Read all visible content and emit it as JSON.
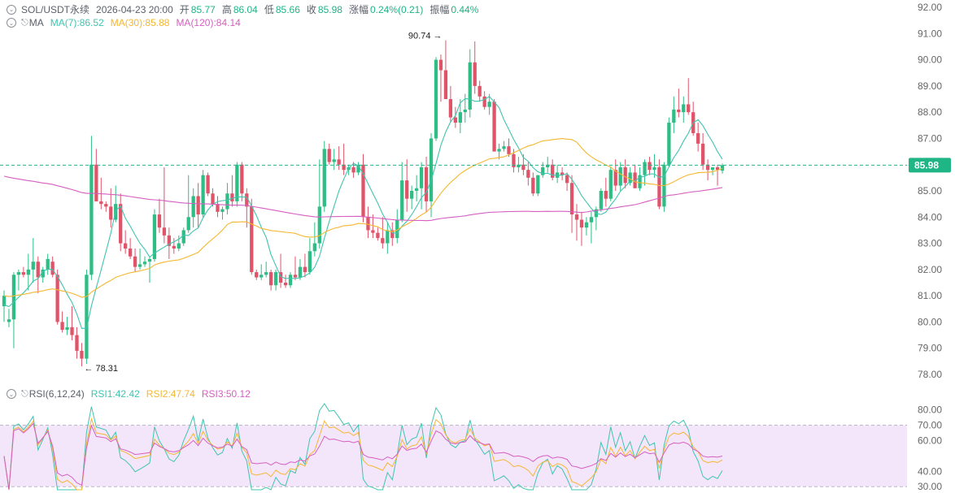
{
  "header": {
    "symbol": "SOL/USDT永续",
    "datetime": "2026-04-23 20:00",
    "open_label": "开",
    "open": "85.77",
    "high_label": "高",
    "high": "86.04",
    "low_label": "低",
    "low": "85.66",
    "close_label": "收",
    "close": "85.98",
    "change_label": "涨幅",
    "change": "0.24%(0.21)",
    "amp_label": "振幅",
    "amp": "0.44%"
  },
  "ma_legend": {
    "name": "MA",
    "ma7": "MA(7):86.52",
    "ma30": "MA(30):85.88",
    "ma120": "MA(120):84.14"
  },
  "rsi_legend": {
    "name": "RSI(6,12,24)",
    "rsi1": "RSI1:42.42",
    "rsi2": "RSI2:47.74",
    "rsi3": "RSI3:50.12"
  },
  "colors": {
    "up": "#2ebd85",
    "down": "#e0546a",
    "ma7": "#40c4b0",
    "ma30": "#f5b731",
    "ma120": "#d65fc0",
    "rsi1": "#40c4b0",
    "rsi2": "#f5b731",
    "rsi3": "#d65fc0",
    "last_price_bg": "#1fb585",
    "rsi_band": "#f3e6fb"
  },
  "chart_data": {
    "type": "candlestick",
    "price_axis": {
      "min": 78.0,
      "max": 92.0,
      "ticks": [
        "92.00",
        "91.00",
        "90.00",
        "89.00",
        "88.00",
        "87.00",
        "86.00",
        "85.00",
        "84.00",
        "83.00",
        "82.00",
        "81.00",
        "80.00",
        "79.00",
        "78.00"
      ]
    },
    "last_price": "85.98",
    "max_label": "90.74 →",
    "max_price": 90.74,
    "max_index": 91,
    "min_label": "← 78.31",
    "min_price": 78.31,
    "min_index": 16,
    "candles": [
      [
        80.6,
        81.2,
        80.0,
        81.0
      ],
      [
        80.0,
        80.5,
        79.8,
        80.1
      ],
      [
        80.1,
        81.9,
        79.0,
        81.8
      ],
      [
        81.8,
        82.0,
        81.2,
        81.9
      ],
      [
        81.9,
        82.1,
        81.7,
        81.8
      ],
      [
        81.8,
        82.6,
        81.2,
        82.0
      ],
      [
        82.0,
        83.2,
        81.5,
        82.3
      ],
      [
        82.3,
        82.5,
        81.1,
        81.7
      ],
      [
        81.7,
        82.1,
        81.5,
        82.0
      ],
      [
        82.0,
        82.6,
        81.8,
        82.4
      ],
      [
        82.3,
        82.5,
        81.7,
        81.8
      ],
      [
        81.8,
        82.0,
        79.9,
        80.0
      ],
      [
        80.0,
        80.4,
        79.6,
        79.7
      ],
      [
        79.7,
        80.2,
        79.5,
        79.8
      ],
      [
        79.8,
        80.6,
        79.3,
        79.5
      ],
      [
        79.5,
        79.8,
        78.6,
        78.9
      ],
      [
        78.9,
        79.2,
        78.31,
        78.6
      ],
      [
        78.6,
        82.0,
        78.4,
        81.8
      ],
      [
        81.8,
        87.1,
        81.6,
        86.0
      ],
      [
        86.0,
        86.6,
        84.6,
        84.6
      ],
      [
        84.6,
        85.5,
        84.3,
        84.5
      ],
      [
        84.5,
        84.6,
        84.2,
        84.4
      ],
      [
        84.4,
        85.1,
        83.6,
        83.9
      ],
      [
        83.9,
        85.2,
        83.8,
        84.5
      ],
      [
        84.5,
        84.9,
        82.7,
        83.0
      ],
      [
        83.0,
        83.5,
        82.6,
        82.8
      ],
      [
        82.8,
        83.2,
        82.4,
        82.5
      ],
      [
        82.5,
        82.8,
        81.9,
        82.1
      ],
      [
        82.1,
        82.8,
        82.0,
        82.2
      ],
      [
        82.2,
        82.5,
        82.1,
        82.3
      ],
      [
        82.3,
        82.5,
        81.5,
        82.4
      ],
      [
        82.4,
        84.3,
        82.3,
        84.1
      ],
      [
        84.1,
        84.7,
        83.4,
        83.6
      ],
      [
        83.6,
        85.9,
        83.0,
        83.3
      ],
      [
        83.3,
        83.6,
        82.4,
        82.9
      ],
      [
        82.9,
        83.2,
        82.6,
        82.8
      ],
      [
        82.8,
        83.3,
        82.7,
        83.0
      ],
      [
        83.0,
        83.6,
        82.9,
        83.5
      ],
      [
        83.5,
        85.6,
        83.4,
        84.0
      ],
      [
        84.0,
        85.1,
        83.6,
        84.8
      ],
      [
        84.8,
        85.3,
        83.6,
        84.1
      ],
      [
        84.1,
        85.8,
        84.0,
        85.6
      ],
      [
        85.6,
        85.7,
        84.8,
        84.9
      ],
      [
        84.9,
        85.1,
        84.4,
        84.5
      ],
      [
        84.5,
        84.8,
        84.0,
        84.2
      ],
      [
        84.2,
        84.4,
        83.9,
        84.3
      ],
      [
        84.3,
        85.3,
        84.1,
        84.9
      ],
      [
        84.9,
        85.6,
        84.4,
        84.6
      ],
      [
        84.6,
        86.1,
        84.4,
        86.0
      ],
      [
        86.0,
        86.1,
        84.6,
        84.9
      ],
      [
        84.9,
        85.1,
        83.6,
        84.4
      ],
      [
        84.4,
        84.7,
        81.8,
        81.9
      ],
      [
        81.9,
        82.0,
        81.6,
        81.7
      ],
      [
        81.7,
        82.2,
        81.6,
        81.8
      ],
      [
        81.8,
        82.3,
        81.7,
        81.9
      ],
      [
        81.9,
        82.0,
        81.2,
        81.4
      ],
      [
        81.4,
        82.0,
        81.2,
        81.9
      ],
      [
        81.9,
        82.6,
        81.3,
        81.5
      ],
      [
        81.5,
        81.8,
        81.3,
        81.4
      ],
      [
        81.4,
        81.9,
        81.3,
        81.8
      ],
      [
        81.8,
        82.5,
        81.6,
        81.7
      ],
      [
        81.7,
        82.4,
        81.6,
        82.1
      ],
      [
        82.1,
        82.6,
        81.7,
        81.9
      ],
      [
        81.9,
        83.2,
        81.8,
        82.7
      ],
      [
        82.7,
        83.8,
        82.5,
        83.0
      ],
      [
        83.0,
        86.2,
        82.8,
        84.4
      ],
      [
        84.4,
        86.9,
        84.2,
        86.6
      ],
      [
        86.6,
        86.8,
        86.0,
        86.1
      ],
      [
        86.1,
        86.6,
        85.8,
        86.2
      ],
      [
        86.2,
        86.7,
        85.8,
        86.0
      ],
      [
        86.0,
        86.8,
        85.6,
        85.8
      ],
      [
        85.8,
        86.0,
        85.6,
        85.9
      ],
      [
        85.9,
        86.1,
        85.5,
        85.7
      ],
      [
        85.7,
        86.1,
        85.6,
        86.0
      ],
      [
        86.0,
        86.4,
        83.8,
        84.0
      ],
      [
        84.0,
        84.4,
        83.2,
        83.5
      ],
      [
        83.5,
        84.1,
        83.2,
        83.4
      ],
      [
        83.4,
        83.6,
        83.1,
        83.2
      ],
      [
        83.2,
        84.0,
        82.8,
        83.0
      ],
      [
        83.0,
        83.8,
        82.6,
        83.5
      ],
      [
        83.5,
        83.8,
        82.9,
        83.2
      ],
      [
        83.2,
        84.3,
        83.0,
        83.9
      ],
      [
        83.9,
        86.1,
        83.8,
        85.4
      ],
      [
        85.4,
        86.2,
        84.2,
        84.7
      ],
      [
        84.7,
        85.2,
        84.3,
        85.0
      ],
      [
        85.0,
        85.6,
        84.6,
        85.1
      ],
      [
        85.1,
        86.1,
        84.3,
        85.9
      ],
      [
        85.9,
        86.3,
        84.2,
        84.6
      ],
      [
        84.6,
        87.2,
        84.0,
        87.0
      ],
      [
        87.0,
        90.1,
        86.9,
        90.0
      ],
      [
        90.0,
        90.2,
        88.4,
        89.6
      ],
      [
        89.6,
        90.74,
        88.6,
        88.5
      ],
      [
        88.5,
        89.0,
        87.6,
        87.8
      ],
      [
        87.8,
        88.2,
        87.4,
        87.6
      ],
      [
        87.6,
        88.5,
        87.2,
        88.0
      ],
      [
        88.0,
        88.7,
        87.6,
        88.1
      ],
      [
        88.1,
        90.4,
        87.8,
        89.9
      ],
      [
        89.9,
        90.7,
        88.7,
        89.0
      ],
      [
        89.0,
        89.2,
        88.4,
        88.6
      ],
      [
        88.6,
        88.8,
        88.1,
        88.2
      ],
      [
        88.2,
        88.7,
        87.9,
        88.4
      ],
      [
        88.4,
        88.5,
        86.6,
        86.5
      ],
      [
        86.5,
        86.8,
        86.2,
        86.6
      ],
      [
        86.6,
        86.9,
        86.5,
        86.7
      ],
      [
        86.7,
        87.0,
        86.3,
        86.4
      ],
      [
        86.4,
        86.6,
        85.7,
        85.9
      ],
      [
        85.9,
        86.3,
        85.7,
        86.0
      ],
      [
        86.0,
        86.4,
        85.6,
        85.8
      ],
      [
        85.8,
        86.1,
        85.2,
        85.5
      ],
      [
        85.5,
        85.7,
        84.8,
        84.9
      ],
      [
        84.9,
        85.6,
        84.8,
        85.6
      ],
      [
        85.6,
        86.1,
        85.5,
        85.9
      ],
      [
        85.9,
        86.3,
        85.7,
        86.0
      ],
      [
        86.0,
        86.2,
        85.4,
        85.5
      ],
      [
        85.5,
        86.0,
        85.3,
        85.7
      ],
      [
        85.7,
        85.9,
        85.4,
        85.6
      ],
      [
        85.6,
        85.7,
        85.0,
        85.3
      ],
      [
        85.3,
        85.6,
        83.4,
        84.1
      ],
      [
        84.1,
        84.5,
        83.1,
        83.9
      ],
      [
        83.9,
        84.2,
        82.9,
        83.6
      ],
      [
        83.6,
        84.0,
        83.3,
        83.8
      ],
      [
        83.8,
        84.2,
        83.0,
        84.0
      ],
      [
        84.0,
        84.4,
        83.5,
        84.3
      ],
      [
        84.3,
        85.1,
        84.2,
        85.0
      ],
      [
        85.0,
        85.5,
        84.4,
        84.7
      ],
      [
        84.7,
        85.9,
        84.6,
        85.8
      ],
      [
        85.8,
        86.2,
        85.0,
        85.2
      ],
      [
        85.2,
        86.1,
        85.0,
        85.9
      ],
      [
        85.9,
        86.2,
        85.1,
        85.3
      ],
      [
        85.3,
        85.9,
        85.2,
        85.7
      ],
      [
        85.7,
        86.0,
        85.1,
        85.1
      ],
      [
        85.1,
        85.9,
        85.0,
        85.6
      ],
      [
        85.6,
        86.2,
        85.2,
        86.1
      ],
      [
        86.1,
        86.3,
        85.6,
        85.8
      ],
      [
        85.8,
        86.4,
        85.5,
        85.9
      ],
      [
        85.9,
        86.2,
        84.3,
        84.4
      ],
      [
        84.4,
        86.1,
        84.2,
        86.0
      ],
      [
        86.0,
        87.8,
        85.9,
        87.6
      ],
      [
        87.6,
        88.6,
        87.2,
        88.1
      ],
      [
        88.1,
        88.9,
        87.8,
        88.0
      ],
      [
        88.0,
        88.6,
        87.6,
        88.3
      ],
      [
        88.3,
        89.3,
        87.9,
        88.0
      ],
      [
        88.0,
        88.4,
        87.1,
        87.2
      ],
      [
        87.2,
        87.6,
        86.5,
        86.8
      ],
      [
        86.8,
        87.2,
        85.8,
        86.0
      ],
      [
        86.0,
        86.2,
        85.4,
        85.8
      ],
      [
        85.8,
        85.9,
        85.6,
        85.9
      ],
      [
        85.9,
        86.0,
        85.2,
        85.8
      ],
      [
        85.77,
        86.04,
        85.66,
        85.98
      ]
    ],
    "ma_series": [
      {
        "name": "MA(7)",
        "period": 7,
        "value": 86.52
      },
      {
        "name": "MA(30)",
        "period": 30,
        "value": 85.88
      },
      {
        "name": "MA(120)",
        "period": 120,
        "value": 84.14
      }
    ],
    "rsi": {
      "axis_ticks": [
        "80.00",
        "70.00",
        "60.00",
        "40.00",
        "30.00"
      ],
      "axis_min": 28,
      "axis_max": 84,
      "band": [
        30,
        70
      ],
      "series": [
        {
          "name": "RSI1",
          "period": 6,
          "value": 42.42
        },
        {
          "name": "RSI2",
          "period": 12,
          "value": 47.74
        },
        {
          "name": "RSI3",
          "period": 24,
          "value": 50.12
        }
      ]
    }
  }
}
